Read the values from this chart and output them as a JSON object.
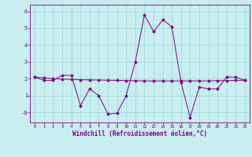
{
  "xlabel": "Windchill (Refroidissement éolien,°C)",
  "x_values": [
    0,
    1,
    2,
    3,
    4,
    5,
    6,
    7,
    8,
    9,
    10,
    11,
    12,
    13,
    14,
    15,
    16,
    17,
    18,
    19,
    20,
    21,
    22,
    23
  ],
  "y_curve": [
    2.1,
    1.9,
    1.9,
    2.2,
    2.2,
    0.4,
    1.4,
    1.0,
    -0.1,
    -0.05,
    1.0,
    3.0,
    5.8,
    4.8,
    5.5,
    5.1,
    1.8,
    -0.3,
    1.5,
    1.4,
    1.4,
    2.1,
    2.1,
    1.9
  ],
  "y_linear": [
    2.1,
    2.05,
    2.0,
    1.98,
    1.96,
    1.94,
    1.93,
    1.92,
    1.91,
    1.9,
    1.89,
    1.88,
    1.87,
    1.87,
    1.87,
    1.87,
    1.87,
    1.87,
    1.87,
    1.87,
    1.88,
    1.89,
    1.9,
    1.91
  ],
  "line_color": "#800080",
  "marker": "D",
  "markersize": 1.5,
  "linewidth": 0.7,
  "background_color": "#c8eef0",
  "grid_color": "#a0d8dc",
  "ylim": [
    -0.6,
    6.4
  ],
  "xlim": [
    -0.5,
    23.5
  ],
  "ytick_vals": [
    0,
    1,
    2,
    3,
    4,
    5,
    6
  ],
  "ytick_labels": [
    "-0",
    "1",
    "2",
    "3",
    "4",
    "5",
    "6"
  ],
  "xtick_fontsize": 4.0,
  "ytick_fontsize": 5.0,
  "xlabel_fontsize": 5.5
}
